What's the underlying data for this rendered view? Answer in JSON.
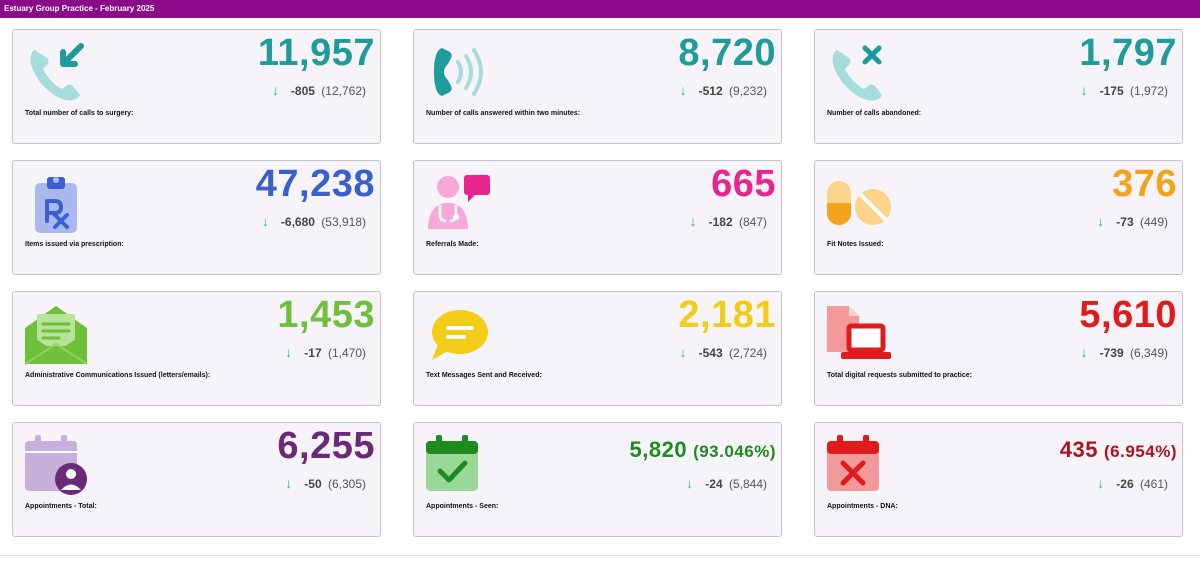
{
  "header": {
    "title": "Estuary Group Practice - February 2025"
  },
  "colors": {
    "teal": "#1e9b9b",
    "blue": "#3a5fd1",
    "pink": "#e8248f",
    "orange": "#f4a21a",
    "green": "#6fbf3a",
    "yellow": "#f2cc17",
    "red": "#e01b1b",
    "purple": "#6a2a78",
    "darkgreen": "#1f8a1f",
    "darkred": "#b0121b"
  },
  "cards": [
    {
      "label": "Total number of calls to surgery:",
      "value": "11,957",
      "delta": "-805",
      "prev": "(12,762)",
      "icon": "incoming-call-icon"
    },
    {
      "label": "Number of calls answered within two minutes:",
      "value": "8,720",
      "delta": "-512",
      "prev": "(9,232)",
      "icon": "ringing-phone-icon"
    },
    {
      "label": "Number of calls abandoned:",
      "value": "1,797",
      "delta": "-175",
      "prev": "(1,972)",
      "icon": "missed-call-icon"
    },
    {
      "label": "Items issued via prescription:",
      "value": "47,238",
      "delta": "-6,680",
      "prev": "(53,918)",
      "icon": "prescription-clipboard-icon"
    },
    {
      "label": "Referrals Made:",
      "value": "665",
      "delta": "-182",
      "prev": "(847)",
      "icon": "doctor-chat-icon"
    },
    {
      "label": "Fit Notes Issued:",
      "value": "376",
      "delta": "-73",
      "prev": "(449)",
      "icon": "pills-icon"
    },
    {
      "label": "Administrative Communications Issued (letters/emails):",
      "value": "1,453",
      "delta": "-17",
      "prev": "(1,470)",
      "icon": "envelope-icon"
    },
    {
      "label": "Text Messages Sent and Received:",
      "value": "2,181",
      "delta": "-543",
      "prev": "(2,724)",
      "icon": "chat-bubble-icon"
    },
    {
      "label": "Total digital requests submitted to practice:",
      "value": "5,610",
      "delta": "-739",
      "prev": "(6,349)",
      "icon": "laptop-document-icon"
    },
    {
      "label": "Appointments - Total:",
      "value": "6,255",
      "delta": "-50",
      "prev": "(6,305)",
      "icon": "calendar-user-icon"
    },
    {
      "label": "Appointments - Seen:",
      "value": "5,820",
      "pct": "(93.046%)",
      "delta": "-24",
      "prev": "(5,844)",
      "icon": "calendar-check-icon"
    },
    {
      "label": "Appointments - DNA:",
      "value": "435",
      "pct": "(6.954%)",
      "delta": "-26",
      "prev": "(461)",
      "icon": "calendar-cross-icon"
    }
  ]
}
